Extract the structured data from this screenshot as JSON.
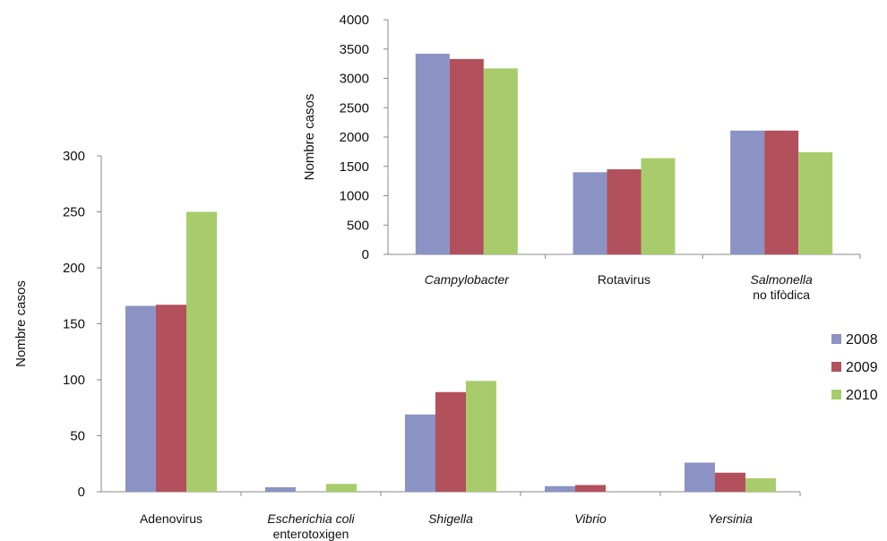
{
  "series_colors": [
    "#8b93c4",
    "#b2505c",
    "#a8cc6c"
  ],
  "legend": [
    "2008",
    "2009",
    "2010"
  ],
  "chart_data": [
    {
      "type": "bar",
      "ylabel": "Nombre casos",
      "ylim": [
        0,
        300
      ],
      "yticks": [
        0,
        50,
        100,
        150,
        200,
        250,
        300
      ],
      "categories": [
        {
          "lines": [
            "Adenovirus"
          ],
          "italic": false
        },
        {
          "lines": [
            "Escherichia coli",
            "enterotoxigen"
          ],
          "italic": [
            true,
            false
          ]
        },
        {
          "lines": [
            "Shigella"
          ],
          "italic": true
        },
        {
          "lines": [
            "Vibrio"
          ],
          "italic": true
        },
        {
          "lines": [
            "Yersinia"
          ],
          "italic": true
        }
      ],
      "series": [
        {
          "name": "2008",
          "values": [
            166,
            4,
            69,
            5,
            26
          ]
        },
        {
          "name": "2009",
          "values": [
            167,
            0,
            89,
            6,
            17
          ]
        },
        {
          "name": "2010",
          "values": [
            250,
            7,
            99,
            0,
            12
          ]
        }
      ],
      "legend_position": "right"
    },
    {
      "type": "bar",
      "ylabel": "Nombre casos",
      "ylim": [
        0,
        4000
      ],
      "yticks": [
        0,
        500,
        1000,
        1500,
        2000,
        2500,
        3000,
        3500,
        4000
      ],
      "categories": [
        {
          "lines": [
            "Campylobacter"
          ],
          "italic": true
        },
        {
          "lines": [
            "Rotavirus"
          ],
          "italic": false
        },
        {
          "lines": [
            "Salmonella",
            "no tifòdica"
          ],
          "italic": [
            true,
            false
          ]
        }
      ],
      "series": [
        {
          "name": "2008",
          "values": [
            3420,
            1400,
            2110
          ]
        },
        {
          "name": "2009",
          "values": [
            3330,
            1450,
            2110
          ]
        },
        {
          "name": "2010",
          "values": [
            3170,
            1640,
            1740
          ]
        }
      ]
    }
  ]
}
